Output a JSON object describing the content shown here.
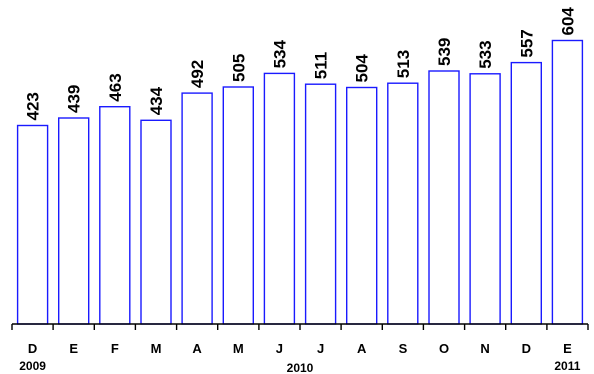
{
  "chart_data": {
    "type": "bar",
    "categories": [
      "D",
      "E",
      "F",
      "M",
      "A",
      "M",
      "J",
      "J",
      "A",
      "S",
      "O",
      "N",
      "D",
      "E"
    ],
    "values": [
      423,
      439,
      463,
      434,
      492,
      505,
      534,
      511,
      504,
      513,
      539,
      533,
      557,
      604
    ],
    "data_labels": [
      "423",
      "439",
      "463",
      "434",
      "492",
      "505",
      "534",
      "511",
      "504",
      "513",
      "539",
      "533",
      "557",
      "604"
    ],
    "year_labels": [
      {
        "text": "2009",
        "category_index": 0
      },
      {
        "text": "2010",
        "category_index": 6.5
      },
      {
        "text": "2011",
        "category_index": 13
      }
    ],
    "title": "",
    "xlabel": "",
    "ylabel": "",
    "ylim": [
      0,
      652
    ],
    "grid": false,
    "legend": "none",
    "colors": {
      "bar_stroke": "#1a1aff",
      "bar_fill": "#ffffff",
      "axis": "#000000"
    }
  }
}
